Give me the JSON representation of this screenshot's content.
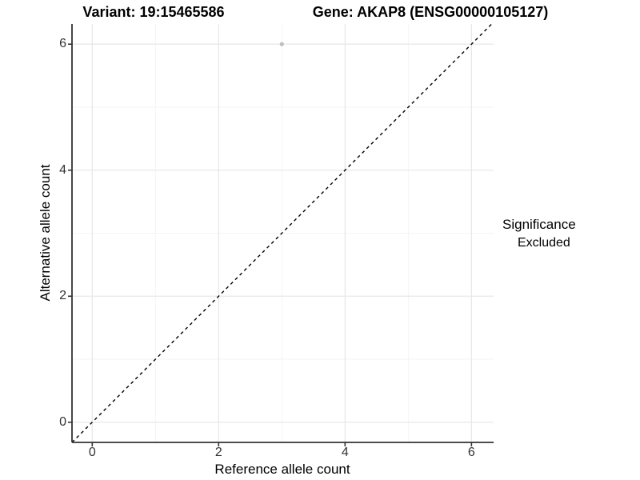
{
  "chart_data": {
    "type": "scatter",
    "titles": [
      "Variant: 19:15465586",
      "Gene: AKAP8 (ENSG00000105127)"
    ],
    "xlabel": "Reference allele count",
    "ylabel": "Alternative allele count",
    "xlim": [
      -0.32,
      6.35
    ],
    "ylim": [
      -0.32,
      6.32
    ],
    "x_ticks": [
      0,
      2,
      4,
      6
    ],
    "y_ticks": [
      0,
      2,
      4,
      6
    ],
    "x_minor_ticks": [
      1,
      3,
      5
    ],
    "y_minor_ticks": [
      1,
      3,
      5
    ],
    "grid": true,
    "legend_position": "right",
    "legend": {
      "title": "Significance",
      "entries": [
        {
          "label": "Excluded",
          "color": "#bdbdbd"
        }
      ]
    },
    "series": [
      {
        "name": "Excluded",
        "color": "#bdbdbd",
        "points": [
          [
            3,
            6
          ]
        ]
      }
    ],
    "reference_line": {
      "style": "dashed",
      "color": "#000000",
      "from": [
        -0.32,
        -0.32
      ],
      "to": [
        6.32,
        6.32
      ]
    }
  },
  "colors": {
    "grid_major": "#e8e8e8",
    "grid_minor": "#f3f3f3",
    "axis_line": "#333333",
    "tick_mark": "#333333",
    "point": "#bdbdbd",
    "reference_line": "#000000"
  }
}
